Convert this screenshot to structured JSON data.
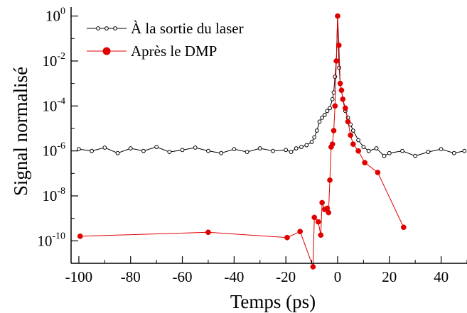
{
  "chart_data": {
    "type": "line",
    "xlabel": "Temps (ps)",
    "ylabel": "Signal normalisé",
    "xlim": [
      -103,
      50
    ],
    "ylim": [
      1e-11,
      2.5
    ],
    "y_scale": "log",
    "x_ticks": [
      -100,
      -80,
      -60,
      -40,
      -20,
      0,
      20,
      40
    ],
    "x_tick_labels": [
      "-100",
      "-80",
      "-60",
      "-40",
      "-20",
      "0",
      "20",
      "40"
    ],
    "y_ticks": [
      {
        "value": 1,
        "base": "10",
        "exp": "0"
      },
      {
        "value": 0.01,
        "base": "10",
        "exp": "-2"
      },
      {
        "value": 0.0001,
        "base": "10",
        "exp": "-4"
      },
      {
        "value": 1e-06,
        "base": "10",
        "exp": "-6"
      },
      {
        "value": 1e-08,
        "base": "10",
        "exp": "-8"
      },
      {
        "value": 1e-10,
        "base": "10",
        "exp": "-10"
      }
    ],
    "legend_position": "top-left",
    "series": [
      {
        "name": "À la sortie du laser",
        "color": "#000000",
        "marker": "open-circle",
        "x": [
          -100,
          -95,
          -90,
          -85,
          -80,
          -75,
          -70,
          -65,
          -60,
          -55,
          -50,
          -45,
          -40,
          -35,
          -30,
          -25,
          -20,
          -18,
          -16,
          -14,
          -12,
          -10,
          -9,
          -8,
          -7,
          -6,
          -5,
          -4,
          -3,
          -2,
          -1.5,
          -1,
          -0.5,
          0,
          0.3,
          0.6,
          1,
          1.5,
          2,
          3,
          4,
          5,
          6,
          8,
          10,
          12,
          15,
          18,
          20,
          25,
          30,
          35,
          40,
          45,
          49
        ],
        "y": [
          1.2e-06,
          1e-06,
          1.4e-06,
          8e-07,
          1.3e-06,
          1e-06,
          1.5e-06,
          9e-07,
          1.1e-06,
          1.4e-06,
          1e-06,
          8e-07,
          1.2e-06,
          9e-07,
          1.3e-06,
          1e-06,
          1.1e-06,
          9e-07,
          1.3e-06,
          1.5e-06,
          1.8e-06,
          2.5e-06,
          4e-06,
          8e-06,
          2e-05,
          3e-05,
          4e-05,
          6e-05,
          8e-05,
          0.0002,
          0.0004,
          0.002,
          0.01,
          1,
          0.05,
          0.005,
          0.001,
          0.0005,
          0.0002,
          6e-05,
          3e-05,
          1.5e-05,
          8e-06,
          3e-06,
          1.5e-06,
          1e-06,
          1.3e-06,
          6e-07,
          8e-07,
          1e-06,
          6e-07,
          9e-07,
          1.2e-06,
          8e-07,
          1e-06
        ]
      },
      {
        "name": "Après le DMP",
        "color": "#e00000",
        "marker": "filled-circle",
        "x": [
          -99.5,
          -50,
          -19.5,
          -14.5,
          -9.5,
          -9,
          -7.5,
          -6.5,
          -6,
          -5,
          -4,
          -3.5,
          -3,
          -2.5,
          -2,
          -1.5,
          -1,
          -0.5,
          0,
          0.5,
          1,
          1.5,
          2,
          3,
          4,
          5,
          6,
          8,
          10.5,
          15.5,
          25.5
        ],
        "y": [
          1.6e-10,
          2.4e-10,
          1.4e-10,
          2.6e-10,
          7e-12,
          1.1e-09,
          7e-10,
          1.8e-10,
          5e-09,
          2.5e-09,
          2.8e-09,
          1.8e-09,
          5e-08,
          1.5e-06,
          2e-06,
          8e-06,
          0.0001,
          0.01,
          1,
          0.05,
          0.001,
          0.0005,
          0.0002,
          8e-05,
          2e-05,
          5e-06,
          2e-06,
          1e-06,
          3e-07,
          1.1e-07,
          4e-10
        ]
      }
    ]
  }
}
